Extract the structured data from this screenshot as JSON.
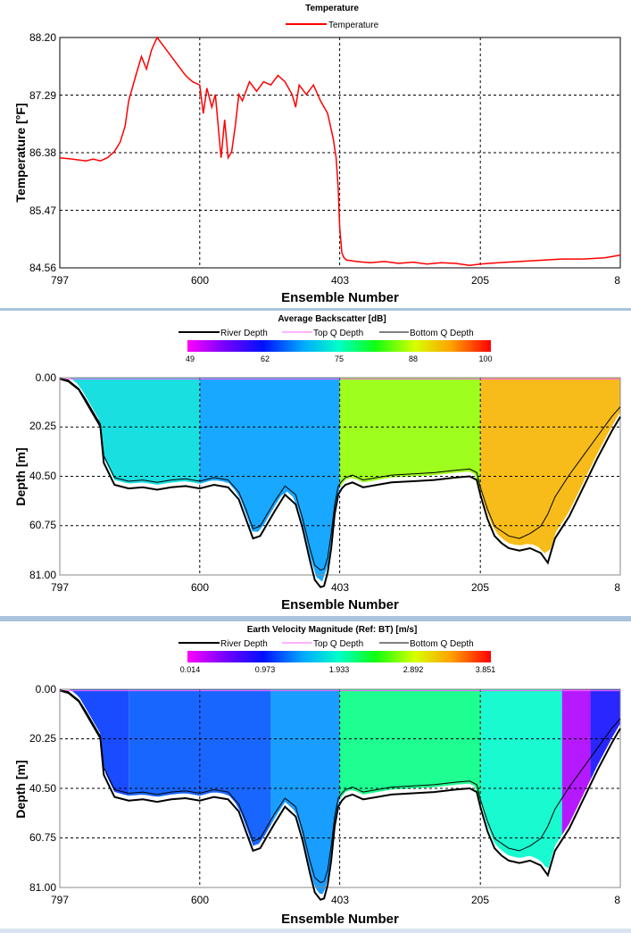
{
  "x_ticks": [
    "797",
    "600",
    "403",
    "205",
    "8"
  ],
  "x_label": "Ensemble Number",
  "charts": [
    {
      "title": "Temperature",
      "legend": [
        "Temperature"
      ],
      "ylabel": "Temperature [°F]",
      "y_ticks": [
        "88.20",
        "87.29",
        "86.38",
        "85.47",
        "84.56"
      ]
    },
    {
      "title": "Average Backscatter [dB]",
      "legend": [
        "River Depth",
        "Top Q Depth",
        "Bottom Q Depth"
      ],
      "colorbar_ticks": [
        "49",
        "62",
        "75",
        "88",
        "100"
      ],
      "ylabel": "Depth [m]",
      "y_ticks": [
        "0.00",
        "20.25",
        "40.50",
        "60.75",
        "81.00"
      ]
    },
    {
      "title": "Earth Velocity Magnitude (Ref: BT) [m/s]",
      "legend": [
        "River Depth",
        "Top Q Depth",
        "Bottom Q Depth"
      ],
      "colorbar_ticks": [
        "0.014",
        "0.973",
        "1.933",
        "2.892",
        "3.851"
      ],
      "ylabel": "Depth [m]",
      "y_ticks": [
        "0.00",
        "20.25",
        "40.50",
        "60.75",
        "81.00"
      ]
    }
  ],
  "chart_data": [
    {
      "type": "line",
      "title": "Temperature",
      "xlabel": "Ensemble Number",
      "ylabel": "Temperature [°F]",
      "x_reversed": true,
      "xlim": [
        797,
        8
      ],
      "ylim": [
        84.56,
        88.2
      ],
      "grid": true,
      "legend_position": "top",
      "series": [
        {
          "name": "Temperature",
          "color": "#ff0000",
          "x": [
            797,
            780,
            760,
            750,
            740,
            730,
            720,
            712,
            705,
            700,
            690,
            682,
            675,
            668,
            660,
            650,
            640,
            630,
            620,
            610,
            600,
            595,
            590,
            583,
            578,
            570,
            565,
            560,
            555,
            550,
            545,
            540,
            530,
            520,
            510,
            500,
            490,
            480,
            470,
            465,
            460,
            450,
            440,
            430,
            420,
            412,
            408,
            405,
            403,
            400,
            397,
            393,
            390,
            380,
            360,
            340,
            320,
            300,
            280,
            260,
            240,
            220,
            205,
            180,
            150,
            120,
            90,
            60,
            30,
            8
          ],
          "values": [
            86.3,
            86.28,
            86.25,
            86.28,
            86.25,
            86.3,
            86.4,
            86.55,
            86.8,
            87.2,
            87.6,
            87.9,
            87.7,
            88.0,
            88.2,
            88.05,
            87.9,
            87.75,
            87.6,
            87.5,
            87.45,
            87.0,
            87.4,
            87.1,
            87.3,
            86.3,
            86.9,
            86.3,
            86.4,
            86.8,
            87.3,
            87.2,
            87.5,
            87.35,
            87.5,
            87.45,
            87.6,
            87.5,
            87.3,
            87.1,
            87.45,
            87.3,
            87.45,
            87.2,
            87.0,
            86.6,
            86.3,
            85.8,
            85.2,
            84.8,
            84.72,
            84.68,
            84.68,
            84.66,
            84.64,
            84.66,
            84.63,
            84.65,
            84.62,
            84.64,
            84.63,
            84.6,
            84.62,
            84.64,
            84.66,
            84.68,
            84.7,
            84.7,
            84.72,
            84.76
          ]
        }
      ]
    },
    {
      "type": "heatmap",
      "title": "Average Backscatter [dB]",
      "xlabel": "Ensemble Number",
      "ylabel": "Depth [m]",
      "x_reversed": true,
      "xlim": [
        797,
        8
      ],
      "ylim": [
        0,
        81
      ],
      "y_reversed": true,
      "grid": true,
      "legend_position": "top",
      "colorbar": {
        "min": 49,
        "max": 100,
        "ticks": [
          49,
          62,
          75,
          88,
          100
        ]
      },
      "zones": [
        {
          "x": [
            797,
            780
          ],
          "value": 70
        },
        {
          "x": [
            780,
            600
          ],
          "value": 72
        },
        {
          "x": [
            600,
            403
          ],
          "value": 68
        },
        {
          "x": [
            403,
            205
          ],
          "value": 85
        },
        {
          "x": [
            205,
            8
          ],
          "value": 92
        }
      ],
      "series": [
        {
          "name": "River Depth",
          "color": "#000000",
          "x": [
            797,
            785,
            770,
            760,
            740,
            735,
            720,
            700,
            680,
            660,
            640,
            620,
            600,
            580,
            560,
            545,
            535,
            525,
            515,
            505,
            495,
            480,
            465,
            455,
            445,
            438,
            430,
            425,
            420,
            415,
            410,
            405,
            400,
            395,
            385,
            370,
            350,
            330,
            300,
            270,
            240,
            220,
            210,
            205,
            195,
            185,
            175,
            165,
            150,
            135,
            120,
            110,
            100,
            80,
            60,
            40,
            20,
            8
          ],
          "values": [
            0.5,
            1.5,
            5,
            10,
            20,
            35,
            44,
            45.5,
            45,
            46,
            45,
            44.5,
            45.5,
            44,
            45,
            50,
            58,
            66,
            65,
            60,
            55,
            48,
            52,
            62,
            75,
            83,
            86,
            85.5,
            80,
            70,
            56,
            48,
            45.5,
            44,
            43,
            45,
            44,
            43,
            42.5,
            42,
            41,
            40.5,
            42,
            48,
            58,
            65,
            68,
            70,
            71,
            70,
            72,
            76,
            66,
            57,
            45,
            33,
            22,
            16
          ]
        },
        {
          "name": "Top Q Depth",
          "color": "#ff66ff",
          "x": [
            797,
            8
          ],
          "values": [
            0.6,
            0.6
          ]
        },
        {
          "name": "Bottom Q Depth",
          "color": "#000000",
          "x": [
            797,
            785,
            770,
            760,
            740,
            735,
            720,
            700,
            680,
            660,
            640,
            620,
            600,
            580,
            560,
            545,
            535,
            525,
            515,
            505,
            495,
            480,
            465,
            455,
            445,
            438,
            430,
            425,
            420,
            415,
            410,
            405,
            400,
            395,
            385,
            370,
            350,
            330,
            300,
            270,
            240,
            220,
            210,
            205,
            195,
            185,
            175,
            165,
            150,
            135,
            120,
            110,
            100,
            80,
            60,
            40,
            20,
            8
          ],
          "values": [
            0.3,
            1,
            4.5,
            9,
            19,
            32,
            41,
            42.5,
            42,
            43,
            42,
            41.5,
            42.5,
            41,
            42,
            47,
            54,
            62,
            61,
            56,
            51,
            44.5,
            48,
            58,
            70,
            77,
            79,
            78.5,
            74,
            64,
            52,
            44.5,
            42.5,
            41,
            40,
            42,
            41,
            40,
            39.5,
            39,
            38,
            37.5,
            39,
            45,
            54,
            61,
            63,
            65,
            66,
            64,
            61,
            56,
            49,
            40,
            32,
            24,
            16,
            12
          ]
        }
      ]
    },
    {
      "type": "heatmap",
      "title": "Earth Velocity Magnitude (Ref: BT) [m/s]",
      "xlabel": "Ensemble Number",
      "ylabel": "Depth [m]",
      "x_reversed": true,
      "xlim": [
        797,
        8
      ],
      "ylim": [
        0,
        81
      ],
      "y_reversed": true,
      "grid": true,
      "legend_position": "top",
      "colorbar": {
        "min": 0.014,
        "max": 3.851,
        "ticks": [
          0.014,
          0.973,
          1.933,
          2.892,
          3.851
        ]
      },
      "zones": [
        {
          "x": [
            797,
            700
          ],
          "value": 1.1
        },
        {
          "x": [
            700,
            500
          ],
          "value": 1.2
        },
        {
          "x": [
            500,
            403
          ],
          "value": 1.4
        },
        {
          "x": [
            403,
            205
          ],
          "value": 2.1
        },
        {
          "x": [
            205,
            90
          ],
          "value": 1.9
        },
        {
          "x": [
            90,
            50
          ],
          "value": 0.3
        },
        {
          "x": [
            50,
            8
          ],
          "value": 0.9
        }
      ],
      "series": [
        {
          "name": "River Depth",
          "color": "#000000",
          "x": [
            797,
            785,
            770,
            760,
            740,
            735,
            720,
            700,
            680,
            660,
            640,
            620,
            600,
            580,
            560,
            545,
            535,
            525,
            515,
            505,
            495,
            480,
            465,
            455,
            445,
            438,
            430,
            425,
            420,
            415,
            410,
            405,
            400,
            395,
            385,
            370,
            350,
            330,
            300,
            270,
            240,
            220,
            210,
            205,
            195,
            185,
            175,
            165,
            150,
            135,
            120,
            110,
            100,
            80,
            60,
            40,
            20,
            8
          ],
          "values": [
            0.5,
            1.5,
            5,
            10,
            20,
            35,
            44,
            45.5,
            45,
            46,
            45,
            44.5,
            45.5,
            44,
            45,
            50,
            58,
            66,
            65,
            60,
            55,
            48,
            52,
            62,
            75,
            83,
            86,
            85.5,
            80,
            70,
            56,
            48,
            45.5,
            44,
            43,
            45,
            44,
            43,
            42.5,
            42,
            41,
            40.5,
            42,
            48,
            58,
            65,
            68,
            70,
            71,
            70,
            72,
            76,
            66,
            57,
            45,
            33,
            22,
            16
          ]
        },
        {
          "name": "Top Q Depth",
          "color": "#ff66ff",
          "x": [
            797,
            8
          ],
          "values": [
            0.6,
            0.6
          ]
        },
        {
          "name": "Bottom Q Depth",
          "color": "#000000",
          "x": [
            797,
            785,
            770,
            760,
            740,
            735,
            720,
            700,
            680,
            660,
            640,
            620,
            600,
            580,
            560,
            545,
            535,
            525,
            515,
            505,
            495,
            480,
            465,
            455,
            445,
            438,
            430,
            425,
            420,
            415,
            410,
            405,
            400,
            395,
            385,
            370,
            350,
            330,
            300,
            270,
            240,
            220,
            210,
            205,
            195,
            185,
            175,
            165,
            150,
            135,
            120,
            110,
            100,
            80,
            60,
            40,
            20,
            8
          ],
          "values": [
            0.3,
            1,
            4.5,
            9,
            19,
            32,
            41,
            42.5,
            42,
            43,
            42,
            41.5,
            42.5,
            41,
            42,
            47,
            54,
            62,
            61,
            56,
            51,
            44.5,
            48,
            58,
            70,
            77,
            79,
            78.5,
            74,
            64,
            52,
            44.5,
            42.5,
            41,
            40,
            42,
            41,
            40,
            39.5,
            39,
            38,
            37.5,
            39,
            45,
            54,
            61,
            63,
            65,
            66,
            64,
            61,
            56,
            49,
            40,
            32,
            24,
            16,
            12
          ]
        }
      ]
    }
  ]
}
